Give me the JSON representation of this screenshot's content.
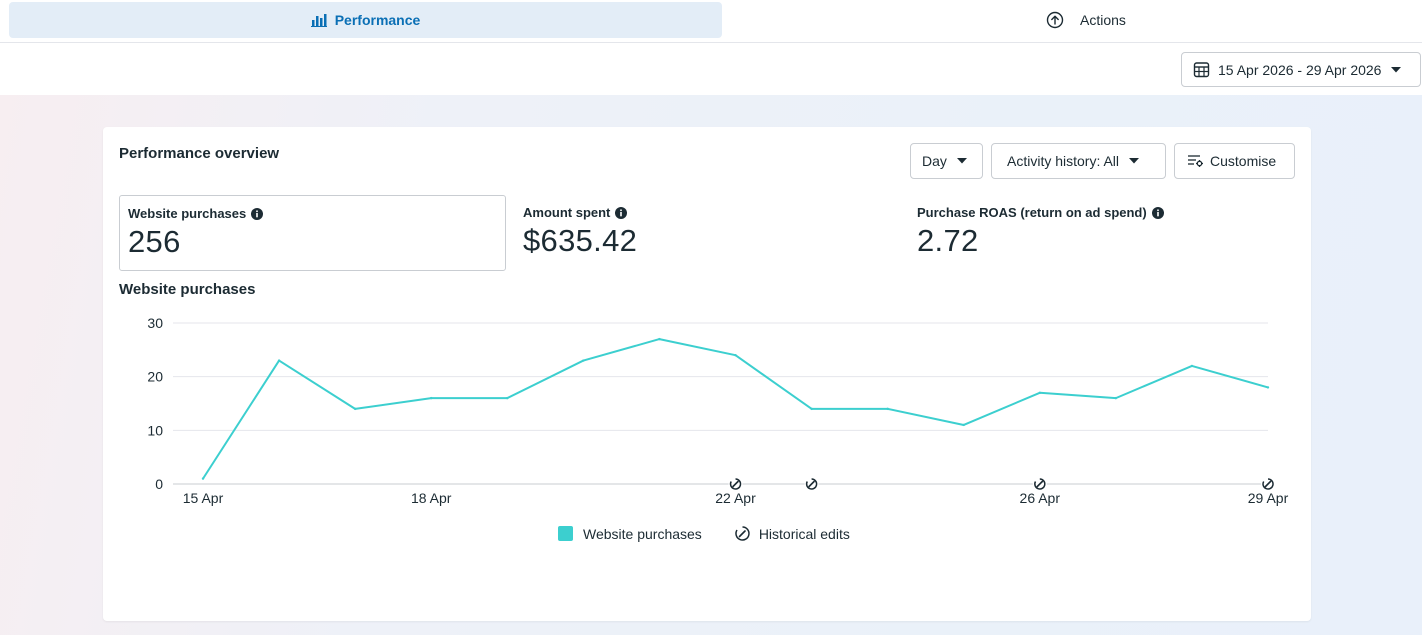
{
  "tabs": [
    {
      "label": "Performance",
      "icon": "bar-chart-icon",
      "active": true
    },
    {
      "label": "Actions",
      "icon": "arrow-up-circle-icon",
      "active": false
    }
  ],
  "date_range": {
    "label": "15 Apr 2026 - 29 Apr 2026"
  },
  "overview": {
    "title": "Performance overview",
    "day_label": "Day",
    "activity_label": "Activity history: All",
    "customise_label": "Customise"
  },
  "metrics": [
    {
      "label": "Website purchases",
      "value": "256"
    },
    {
      "label": "Amount spent",
      "value": "$635.42"
    },
    {
      "label": "Purchase ROAS (return on ad spend)",
      "value": "2.72"
    }
  ],
  "chart_title": "Website purchases",
  "legend": {
    "series_label": "Website purchases",
    "edits_label": "Historical edits"
  },
  "colors": {
    "series": "#3ccfcf",
    "accent": "#0a6fb5"
  },
  "chart_data": {
    "type": "line",
    "title": "Website purchases",
    "x": [
      "15 Apr",
      "16 Apr",
      "17 Apr",
      "18 Apr",
      "19 Apr",
      "20 Apr",
      "21 Apr",
      "22 Apr",
      "23 Apr",
      "24 Apr",
      "25 Apr",
      "26 Apr",
      "27 Apr",
      "28 Apr",
      "29 Apr"
    ],
    "x_tick_labels": [
      "15 Apr",
      "18 Apr",
      "22 Apr",
      "26 Apr",
      "29 Apr"
    ],
    "y_ticks": [
      0,
      10,
      20,
      30
    ],
    "ylim": [
      0,
      30
    ],
    "grid": true,
    "legend_position": "bottom",
    "series": [
      {
        "name": "Website purchases",
        "values": [
          1,
          23,
          14,
          16,
          16,
          23,
          27,
          24,
          14,
          14,
          11,
          17,
          16,
          22,
          18
        ]
      }
    ],
    "historical_edits": [
      "22 Apr",
      "23 Apr",
      "26 Apr",
      "29 Apr"
    ]
  }
}
